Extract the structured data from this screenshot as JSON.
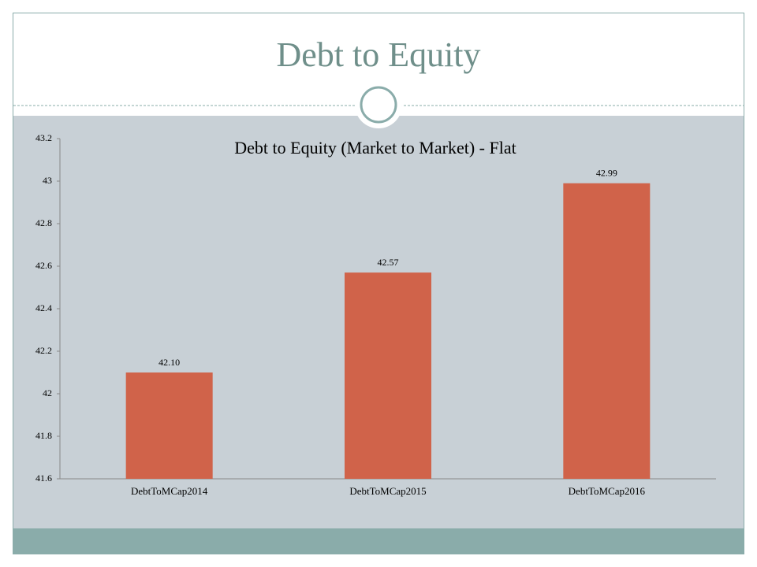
{
  "slide_title": "Debt to Equity",
  "chart_data": {
    "type": "bar",
    "title": "Debt to Equity (Market to Market) - Flat",
    "categories": [
      "DebtToMCap2014",
      "DebtToMCap2015",
      "DebtToMCap2016"
    ],
    "values": [
      42.1,
      42.57,
      42.99
    ],
    "value_labels": [
      "42.10",
      "42.57",
      "42.99"
    ],
    "color": "#d0634a",
    "ylim": [
      41.6,
      43.2
    ],
    "yticks": [
      41.6,
      41.8,
      42,
      42.2,
      42.4,
      42.6,
      42.8,
      43,
      43.2
    ],
    "grid": false
  }
}
